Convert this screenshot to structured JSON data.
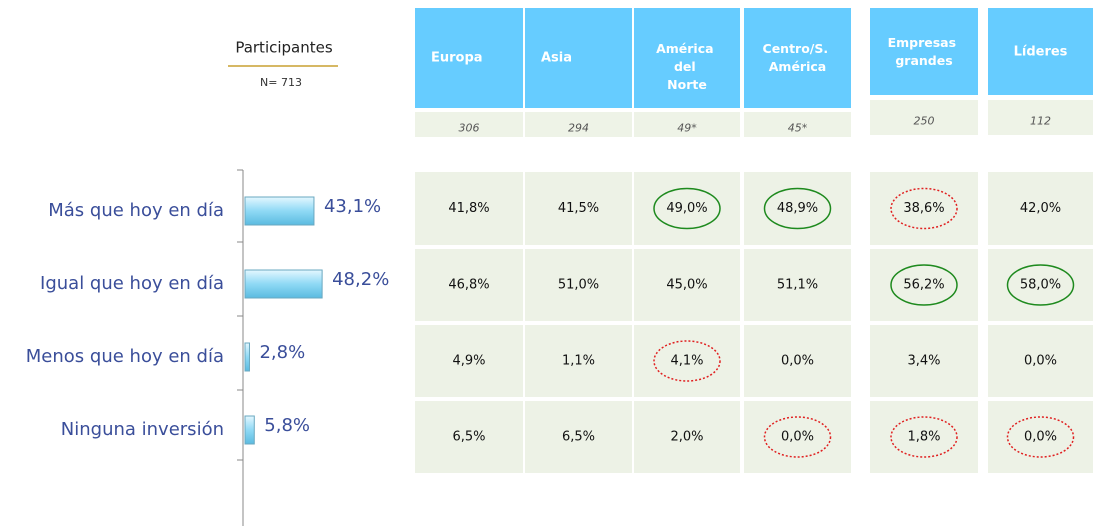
{
  "header": {
    "title": "Participantes",
    "subtitle": "N= 713"
  },
  "chart_data": {
    "type": "bar",
    "orientation": "horizontal",
    "categories": [
      "Más que hoy en día",
      "Igual que hoy en día",
      "Menos que hoy en día",
      "Ninguna inversión"
    ],
    "values": [
      43.1,
      48.2,
      2.8,
      5.8
    ],
    "value_labels": [
      "43,1%",
      "48,2%",
      "2,8%",
      "5,8%"
    ],
    "color": "#8fd9f5"
  },
  "table": {
    "columns": [
      "Europa",
      "Asia",
      "América del Norte",
      "Centro/S. América",
      "Empresas grandes",
      "Líderes"
    ],
    "sample_sizes": [
      "306",
      "294",
      "49*",
      "45*",
      "250",
      "112"
    ],
    "rows": [
      [
        {
          "text": "41,8%"
        },
        {
          "text": "41,5%"
        },
        {
          "text": "49,0%",
          "mark": "green"
        },
        {
          "text": "48,9%",
          "mark": "green"
        },
        {
          "text": "38,6%",
          "mark": "red"
        },
        {
          "text": "42,0%"
        }
      ],
      [
        {
          "text": "46,8%"
        },
        {
          "text": "51,0%"
        },
        {
          "text": "45,0%"
        },
        {
          "text": "51,1%"
        },
        {
          "text": "56,2%",
          "mark": "green"
        },
        {
          "text": "58,0%",
          "mark": "green"
        }
      ],
      [
        {
          "text": "4,9%"
        },
        {
          "text": "1,1%"
        },
        {
          "text": "4,1%",
          "mark": "red"
        },
        {
          "text": "0,0%"
        },
        {
          "text": "3,4%"
        },
        {
          "text": "0,0%"
        }
      ],
      [
        {
          "text": "6,5%"
        },
        {
          "text": "6,5%"
        },
        {
          "text": "2,0%"
        },
        {
          "text": "0,0%",
          "mark": "red"
        },
        {
          "text": "1,8%",
          "mark": "red"
        },
        {
          "text": "0,0%",
          "mark": "red"
        }
      ]
    ]
  }
}
